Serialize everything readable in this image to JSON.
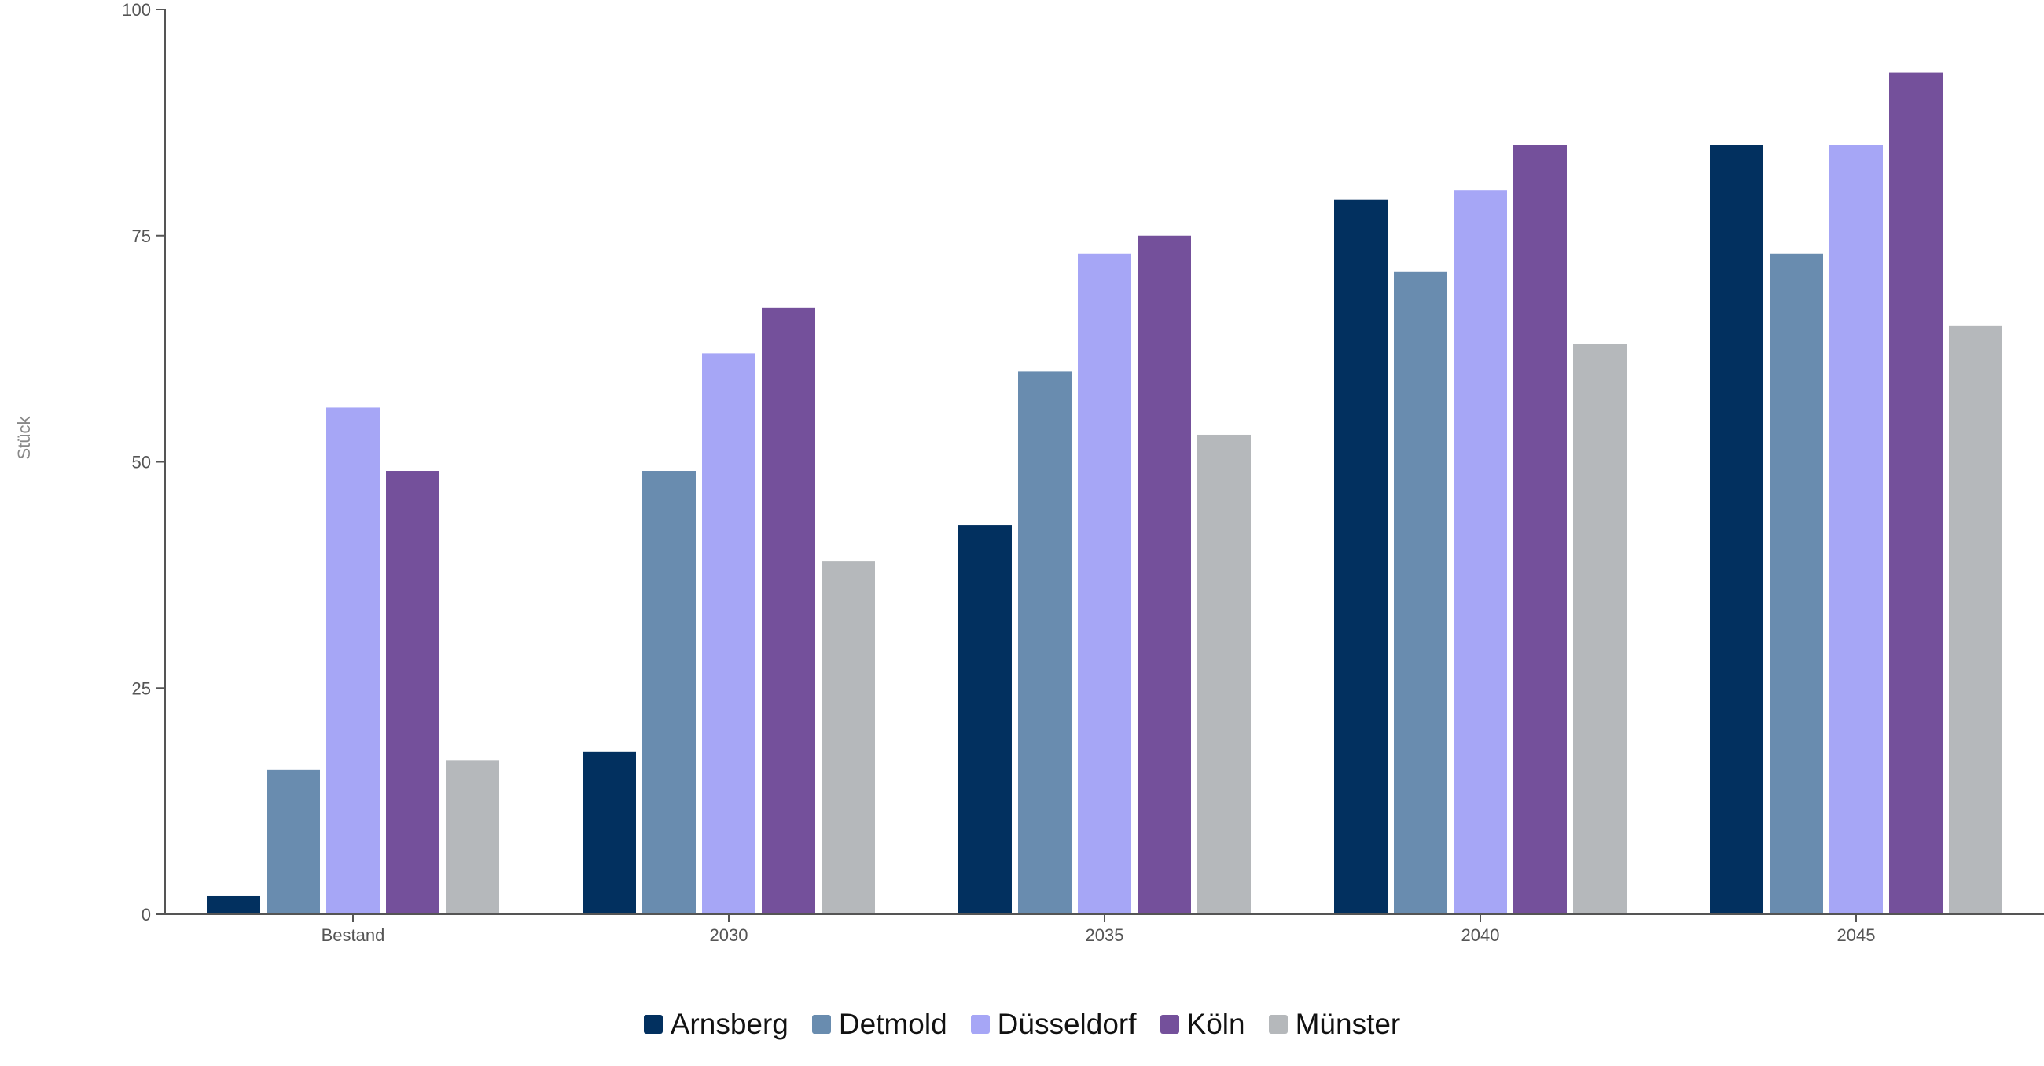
{
  "chart_data": {
    "type": "bar",
    "title": "",
    "xlabel": "",
    "ylabel": "Stück",
    "ylim": [
      0,
      100
    ],
    "yticks": [
      0,
      25,
      50,
      75,
      100
    ],
    "grid": false,
    "legend_position": "bottom-center",
    "categories": [
      "Bestand",
      "2030",
      "2035",
      "2040",
      "2045"
    ],
    "series": [
      {
        "name": "Arnsberg",
        "color": "#02305f",
        "values": [
          2,
          18,
          43,
          79,
          85
        ]
      },
      {
        "name": "Detmold",
        "color": "#698caf",
        "values": [
          16,
          49,
          60,
          71,
          73
        ]
      },
      {
        "name": "Düsseldorf",
        "color": "#a6a6f6",
        "values": [
          56,
          62,
          73,
          80,
          85
        ]
      },
      {
        "name": "Köln",
        "color": "#74509b",
        "values": [
          49,
          67,
          75,
          85,
          93
        ]
      },
      {
        "name": "Münster",
        "color": "#b5b8bb",
        "values": [
          17,
          39,
          53,
          63,
          65
        ]
      }
    ]
  }
}
